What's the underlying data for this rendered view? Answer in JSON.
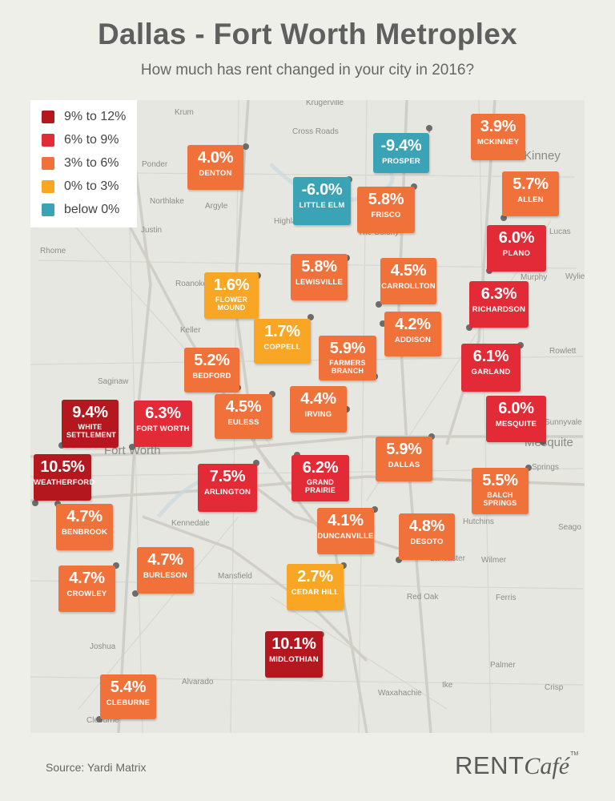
{
  "title": "Dallas - Fort Worth Metroplex",
  "subtitle": "How much has rent changed in your city in 2016?",
  "source": "Source: Yardi Matrix",
  "brand": {
    "part1": "RENT",
    "part2": "Café",
    "tm": "TM"
  },
  "colors": {
    "9-12": "#b5171e",
    "6-9": "#e32b37",
    "3-6": "#f0723a",
    "0-3": "#f8a623",
    "below0": "#3aa3b6"
  },
  "legend": [
    {
      "label": "9% to 12%",
      "cat": "9-12"
    },
    {
      "label": "6% to 9%",
      "cat": "6-9"
    },
    {
      "label": "3% to 6%",
      "cat": "3-6"
    },
    {
      "label": "0% to 3%",
      "cat": "0-3"
    },
    {
      "label": "below 0%",
      "cat": "below0"
    }
  ],
  "cities": [
    {
      "id": "mckinney",
      "name": "MCKINNEY",
      "value": "3.9%",
      "cat": "3-6"
    },
    {
      "id": "prosper",
      "name": "PROSPER",
      "value": "-9.4%",
      "cat": "below0"
    },
    {
      "id": "denton",
      "name": "DENTON",
      "value": "4.0%",
      "cat": "3-6"
    },
    {
      "id": "little-elm",
      "name": "LITTLE ELM",
      "value": "-6.0%",
      "cat": "below0"
    },
    {
      "id": "frisco",
      "name": "FRISCO",
      "value": "5.8%",
      "cat": "3-6"
    },
    {
      "id": "allen",
      "name": "ALLEN",
      "value": "5.7%",
      "cat": "3-6"
    },
    {
      "id": "plano",
      "name": "PLANO",
      "value": "6.0%",
      "cat": "6-9"
    },
    {
      "id": "lewisville",
      "name": "LEWISVILLE",
      "value": "5.8%",
      "cat": "3-6"
    },
    {
      "id": "carrollton",
      "name": "CARROLLTON",
      "value": "4.5%",
      "cat": "3-6"
    },
    {
      "id": "flower-mound",
      "name": "FLOWER MOUND",
      "value": "1.6%",
      "cat": "0-3"
    },
    {
      "id": "richardson",
      "name": "RICHARDSON",
      "value": "6.3%",
      "cat": "6-9"
    },
    {
      "id": "coppell",
      "name": "COPPELL",
      "value": "1.7%",
      "cat": "0-3"
    },
    {
      "id": "addison",
      "name": "ADDISON",
      "value": "4.2%",
      "cat": "3-6"
    },
    {
      "id": "farmers-branch",
      "name": "FARMERS BRANCH",
      "value": "5.9%",
      "cat": "3-6"
    },
    {
      "id": "bedford",
      "name": "BEDFORD",
      "value": "5.2%",
      "cat": "3-6"
    },
    {
      "id": "garland",
      "name": "GARLAND",
      "value": "6.1%",
      "cat": "6-9"
    },
    {
      "id": "white-settlement",
      "name": "WHITE SETTLEMENT",
      "value": "9.4%",
      "cat": "9-12"
    },
    {
      "id": "fort-worth",
      "name": "FORT WORTH",
      "value": "6.3%",
      "cat": "6-9"
    },
    {
      "id": "euless",
      "name": "EULESS",
      "value": "4.5%",
      "cat": "3-6"
    },
    {
      "id": "irving",
      "name": "IRVING",
      "value": "4.4%",
      "cat": "3-6"
    },
    {
      "id": "mesquite",
      "name": "MESQUITE",
      "value": "6.0%",
      "cat": "6-9"
    },
    {
      "id": "weatherford",
      "name": "WEATHERFORD",
      "value": "10.5%",
      "cat": "9-12"
    },
    {
      "id": "arlington",
      "name": "ARLINGTON",
      "value": "7.5%",
      "cat": "6-9"
    },
    {
      "id": "grand-prairie",
      "name": "GRAND PRAIRIE",
      "value": "6.2%",
      "cat": "6-9"
    },
    {
      "id": "dallas",
      "name": "DALLAS",
      "value": "5.9%",
      "cat": "3-6"
    },
    {
      "id": "balch-springs",
      "name": "BALCH SPRINGS",
      "value": "5.5%",
      "cat": "3-6"
    },
    {
      "id": "benbrook",
      "name": "BENBROOK",
      "value": "4.7%",
      "cat": "3-6"
    },
    {
      "id": "duncanville",
      "name": "DUNCANVILLE",
      "value": "4.1%",
      "cat": "3-6"
    },
    {
      "id": "desoto",
      "name": "DESOTO",
      "value": "4.8%",
      "cat": "3-6"
    },
    {
      "id": "burleson",
      "name": "BURLESON",
      "value": "4.7%",
      "cat": "3-6"
    },
    {
      "id": "crowley",
      "name": "CROWLEY",
      "value": "4.7%",
      "cat": "3-6"
    },
    {
      "id": "cedar-hill",
      "name": "CEDAR HILL",
      "value": "2.7%",
      "cat": "0-3"
    },
    {
      "id": "midlothian",
      "name": "MIDLOTHIAN",
      "value": "10.1%",
      "cat": "9-12"
    },
    {
      "id": "cleburne",
      "name": "CLEBURNE",
      "value": "5.4%",
      "cat": "3-6"
    }
  ],
  "basemap_places": [
    {
      "id": "krugerville",
      "text": "Krugerville"
    },
    {
      "id": "krum",
      "text": "Krum"
    },
    {
      "id": "cross-roads",
      "text": "Cross Roads"
    },
    {
      "id": "ponder",
      "text": "Ponder"
    },
    {
      "id": "mckinney-base",
      "text": "McKinney"
    },
    {
      "id": "northlake",
      "text": "Northlake"
    },
    {
      "id": "argyle",
      "text": "Argyle"
    },
    {
      "id": "highland-village",
      "text": "Highland Village"
    },
    {
      "id": "the-colony",
      "text": "The Colony"
    },
    {
      "id": "justin",
      "text": "Justin"
    },
    {
      "id": "lucas",
      "text": "Lucas"
    },
    {
      "id": "rhome",
      "text": "Rhome"
    },
    {
      "id": "murphy",
      "text": "Murphy"
    },
    {
      "id": "wylie",
      "text": "Wylie"
    },
    {
      "id": "roanoke",
      "text": "Roanoke"
    },
    {
      "id": "keller",
      "text": "Keller"
    },
    {
      "id": "rowlett",
      "text": "Rowlett"
    },
    {
      "id": "saginaw",
      "text": "Saginaw"
    },
    {
      "id": "sunnyvale",
      "text": "Sunnyvale"
    },
    {
      "id": "fort-worth-base",
      "text": "Fort Worth"
    },
    {
      "id": "mesquite-base",
      "text": "Mesquite"
    },
    {
      "id": "springs",
      "text": "Springs"
    },
    {
      "id": "kennedale",
      "text": "Kennedale"
    },
    {
      "id": "hutchins",
      "text": "Hutchins"
    },
    {
      "id": "seagoville",
      "text": "Seago"
    },
    {
      "id": "lancaster",
      "text": "Lancaster"
    },
    {
      "id": "wilmer",
      "text": "Wilmer"
    },
    {
      "id": "mansfield",
      "text": "Mansfield"
    },
    {
      "id": "red-oak",
      "text": "Red Oak"
    },
    {
      "id": "ferris",
      "text": "Ferris"
    },
    {
      "id": "joshua",
      "text": "Joshua"
    },
    {
      "id": "alvarado",
      "text": "Alvarado"
    },
    {
      "id": "palmer",
      "text": "Palmer"
    },
    {
      "id": "ike",
      "text": "Ike"
    },
    {
      "id": "crisp",
      "text": "Crisp"
    },
    {
      "id": "waxahachie",
      "text": "Waxahachie"
    },
    {
      "id": "cleburne-base",
      "text": "Cleburne"
    }
  ]
}
